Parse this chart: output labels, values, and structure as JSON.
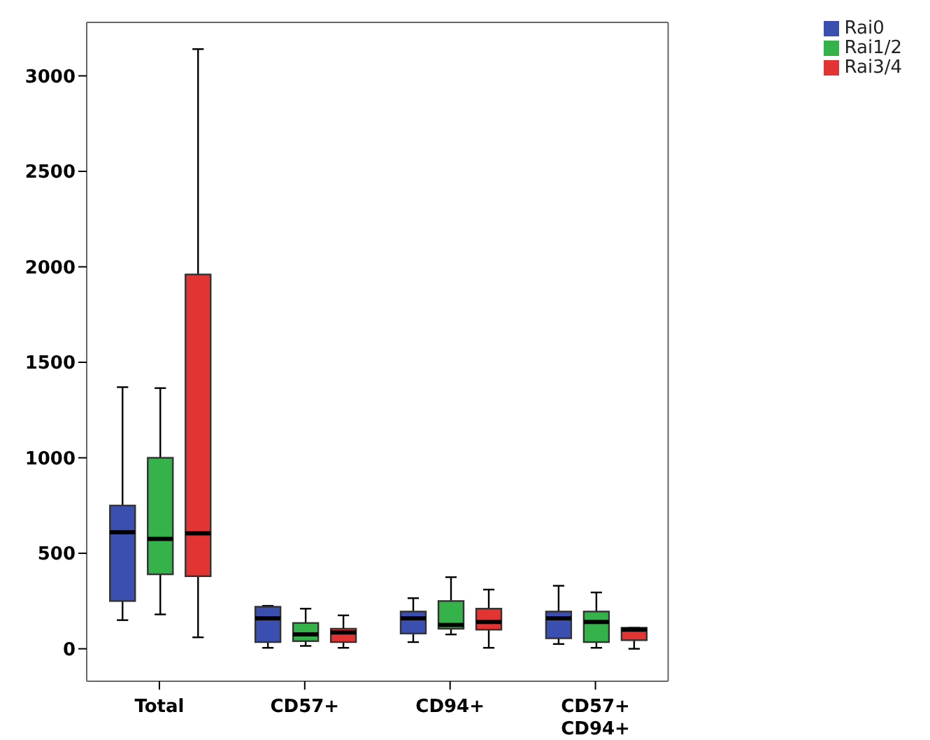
{
  "chart_data": {
    "type": "box",
    "categories": [
      "Total",
      "CD57+",
      "CD94+",
      "CD57+ CD94+"
    ],
    "series": [
      {
        "name": "Rai0",
        "color": "#3a4fb0",
        "boxes": [
          {
            "low": 150,
            "q1": 250,
            "median": 610,
            "q3": 750,
            "high": 1370
          },
          {
            "low": 5,
            "q1": 35,
            "median": 160,
            "q3": 220,
            "high": 225
          },
          {
            "low": 35,
            "q1": 80,
            "median": 160,
            "q3": 195,
            "high": 265
          },
          {
            "low": 25,
            "q1": 55,
            "median": 160,
            "q3": 195,
            "high": 330
          }
        ]
      },
      {
        "name": "Rai1/2",
        "color": "#35b24a",
        "boxes": [
          {
            "low": 180,
            "q1": 390,
            "median": 575,
            "q3": 1000,
            "high": 1365
          },
          {
            "low": 15,
            "q1": 40,
            "median": 75,
            "q3": 135,
            "high": 210
          },
          {
            "low": 75,
            "q1": 105,
            "median": 125,
            "q3": 250,
            "high": 375
          },
          {
            "low": 5,
            "q1": 35,
            "median": 140,
            "q3": 195,
            "high": 295
          }
        ]
      },
      {
        "name": "Rai3/4",
        "color": "#e33434",
        "boxes": [
          {
            "low": 60,
            "q1": 380,
            "median": 605,
            "q3": 1960,
            "high": 3140
          },
          {
            "low": 5,
            "q1": 35,
            "median": 85,
            "q3": 105,
            "high": 175
          },
          {
            "low": 5,
            "q1": 100,
            "median": 140,
            "q3": 210,
            "high": 310
          },
          {
            "low": 0,
            "q1": 45,
            "median": 100,
            "q3": 110,
            "high": 110
          }
        ]
      }
    ],
    "ylim": [
      -170,
      3280
    ],
    "yticks": [
      0,
      500,
      1000,
      1500,
      2000,
      2500,
      3000
    ],
    "legend": "top right"
  }
}
